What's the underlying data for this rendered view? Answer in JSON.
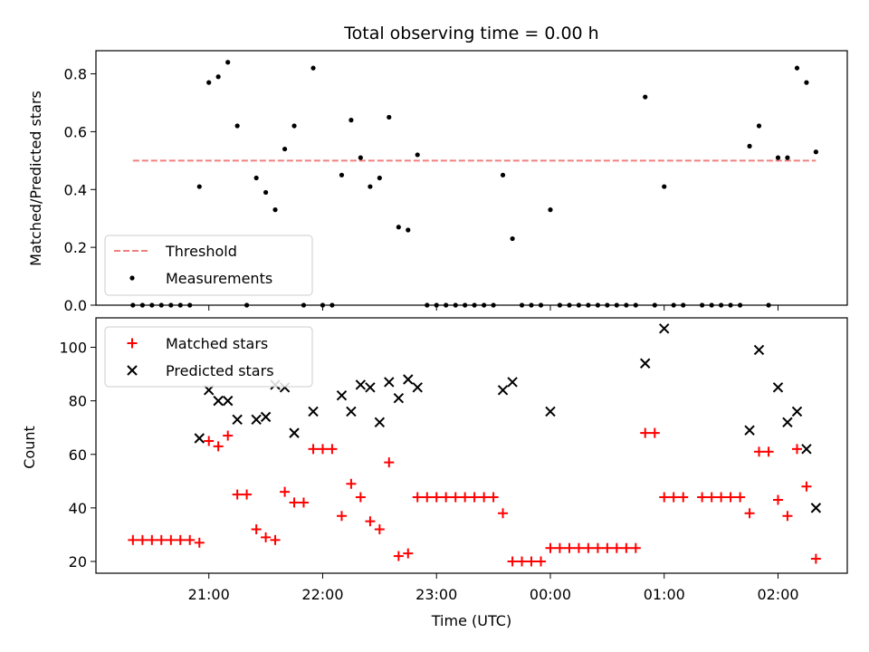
{
  "chart_data": {
    "title": "Total observing time = 0.00 h",
    "xlabel": "Time (UTC)",
    "x_tick_labels": [
      "21:00",
      "22:00",
      "23:00",
      "00:00",
      "01:00",
      "02:00"
    ],
    "x_tick_hours": [
      21,
      22,
      23,
      24,
      25,
      26
    ],
    "xlim_hours": [
      20.0083,
      26.6083
    ],
    "panels": [
      {
        "type": "scatter",
        "ylabel": "Matched/Predicted stars",
        "ylim": [
          0,
          0.88
        ],
        "yticks": [
          0,
          0.2,
          0.4,
          0.6,
          0.8
        ],
        "ytick_labels": [
          "0.0",
          "0.2",
          "0.4",
          "0.6",
          "0.8"
        ],
        "legend": {
          "placement": "lower-left",
          "entries": [
            "Threshold",
            "Measurements"
          ]
        },
        "threshold": {
          "name": "Threshold",
          "value": 0.5,
          "x_range_hours": [
            20.333,
            26.333
          ],
          "color": "#f08080"
        },
        "series": [
          {
            "name": "Measurements",
            "color": "#000000",
            "points": [
              [
                20.333,
                0
              ],
              [
                20.417,
                0
              ],
              [
                20.5,
                0
              ],
              [
                20.583,
                0
              ],
              [
                20.667,
                0
              ],
              [
                20.75,
                0
              ],
              [
                20.833,
                0
              ],
              [
                20.917,
                0.41
              ],
              [
                21.0,
                0.77
              ],
              [
                21.083,
                0.79
              ],
              [
                21.167,
                0.84
              ],
              [
                21.25,
                0.62
              ],
              [
                21.333,
                0
              ],
              [
                21.417,
                0.44
              ],
              [
                21.5,
                0.39
              ],
              [
                21.583,
                0.33
              ],
              [
                21.667,
                0.54
              ],
              [
                21.75,
                0.62
              ],
              [
                21.833,
                0
              ],
              [
                21.917,
                0.82
              ],
              [
                22.0,
                0
              ],
              [
                22.083,
                0
              ],
              [
                22.167,
                0.45
              ],
              [
                22.25,
                0.64
              ],
              [
                22.333,
                0.51
              ],
              [
                22.417,
                0.41
              ],
              [
                22.5,
                0.44
              ],
              [
                22.583,
                0.65
              ],
              [
                22.667,
                0.27
              ],
              [
                22.75,
                0.26
              ],
              [
                22.833,
                0.52
              ],
              [
                22.917,
                0
              ],
              [
                23.0,
                0
              ],
              [
                23.083,
                0
              ],
              [
                23.167,
                0
              ],
              [
                23.25,
                0
              ],
              [
                23.333,
                0
              ],
              [
                23.417,
                0
              ],
              [
                23.5,
                0
              ],
              [
                23.583,
                0.45
              ],
              [
                23.667,
                0.23
              ],
              [
                23.75,
                0
              ],
              [
                23.833,
                0
              ],
              [
                23.917,
                0
              ],
              [
                24.0,
                0.33
              ],
              [
                24.083,
                0
              ],
              [
                24.167,
                0
              ],
              [
                24.25,
                0
              ],
              [
                24.333,
                0
              ],
              [
                24.417,
                0
              ],
              [
                24.5,
                0
              ],
              [
                24.583,
                0
              ],
              [
                24.667,
                0
              ],
              [
                24.75,
                0
              ],
              [
                24.833,
                0.72
              ],
              [
                24.917,
                0
              ],
              [
                25.0,
                0.41
              ],
              [
                25.083,
                0
              ],
              [
                25.167,
                0
              ],
              [
                25.333,
                0
              ],
              [
                25.417,
                0
              ],
              [
                25.5,
                0
              ],
              [
                25.583,
                0
              ],
              [
                25.667,
                0
              ],
              [
                25.75,
                0.55
              ],
              [
                25.833,
                0.62
              ],
              [
                25.917,
                0
              ],
              [
                26.0,
                0.51
              ],
              [
                26.083,
                0.51
              ],
              [
                26.167,
                0.82
              ],
              [
                26.25,
                0.77
              ],
              [
                26.333,
                0.53
              ]
            ]
          }
        ]
      },
      {
        "type": "scatter",
        "ylabel": "Count",
        "ylim": [
          15.6,
          111
        ],
        "yticks": [
          20,
          40,
          60,
          80,
          100
        ],
        "ytick_labels": [
          "20",
          "40",
          "60",
          "80",
          "100"
        ],
        "legend": {
          "placement": "top-left",
          "entries": [
            "Matched stars",
            "Predicted stars"
          ]
        },
        "series": [
          {
            "name": "Matched stars",
            "marker": "plus",
            "color": "#ff0000",
            "points": [
              [
                20.333,
                28
              ],
              [
                20.417,
                28
              ],
              [
                20.5,
                28
              ],
              [
                20.583,
                28
              ],
              [
                20.667,
                28
              ],
              [
                20.75,
                28
              ],
              [
                20.833,
                28
              ],
              [
                20.917,
                27
              ],
              [
                21.0,
                65
              ],
              [
                21.083,
                63
              ],
              [
                21.167,
                67
              ],
              [
                21.25,
                45
              ],
              [
                21.333,
                45
              ],
              [
                21.417,
                32
              ],
              [
                21.5,
                29
              ],
              [
                21.583,
                28
              ],
              [
                21.667,
                46
              ],
              [
                21.75,
                42
              ],
              [
                21.833,
                42
              ],
              [
                21.917,
                62
              ],
              [
                22.0,
                62
              ],
              [
                22.083,
                62
              ],
              [
                22.167,
                37
              ],
              [
                22.25,
                49
              ],
              [
                22.333,
                44
              ],
              [
                22.417,
                35
              ],
              [
                22.5,
                32
              ],
              [
                22.583,
                57
              ],
              [
                22.667,
                22
              ],
              [
                22.75,
                23
              ],
              [
                22.833,
                44
              ],
              [
                22.917,
                44
              ],
              [
                23.0,
                44
              ],
              [
                23.083,
                44
              ],
              [
                23.167,
                44
              ],
              [
                23.25,
                44
              ],
              [
                23.333,
                44
              ],
              [
                23.417,
                44
              ],
              [
                23.5,
                44
              ],
              [
                23.583,
                38
              ],
              [
                23.667,
                20
              ],
              [
                23.75,
                20
              ],
              [
                23.833,
                20
              ],
              [
                23.917,
                20
              ],
              [
                24.0,
                25
              ],
              [
                24.083,
                25
              ],
              [
                24.167,
                25
              ],
              [
                24.25,
                25
              ],
              [
                24.333,
                25
              ],
              [
                24.417,
                25
              ],
              [
                24.5,
                25
              ],
              [
                24.583,
                25
              ],
              [
                24.667,
                25
              ],
              [
                24.75,
                25
              ],
              [
                24.833,
                68
              ],
              [
                24.917,
                68
              ],
              [
                25.0,
                44
              ],
              [
                25.083,
                44
              ],
              [
                25.167,
                44
              ],
              [
                25.333,
                44
              ],
              [
                25.417,
                44
              ],
              [
                25.5,
                44
              ],
              [
                25.583,
                44
              ],
              [
                25.667,
                44
              ],
              [
                25.75,
                38
              ],
              [
                25.833,
                61
              ],
              [
                25.917,
                61
              ],
              [
                26.0,
                43
              ],
              [
                26.083,
                37
              ],
              [
                26.167,
                62
              ],
              [
                26.25,
                48
              ],
              [
                26.333,
                21
              ]
            ]
          },
          {
            "name": "Predicted stars",
            "marker": "x",
            "color": "#000000",
            "points": [
              [
                20.917,
                66
              ],
              [
                21.0,
                84
              ],
              [
                21.083,
                80
              ],
              [
                21.167,
                80
              ],
              [
                21.25,
                73
              ],
              [
                21.417,
                73
              ],
              [
                21.5,
                74
              ],
              [
                21.583,
                86
              ],
              [
                21.667,
                85
              ],
              [
                21.75,
                68
              ],
              [
                21.917,
                76
              ],
              [
                22.167,
                82
              ],
              [
                22.25,
                76
              ],
              [
                22.333,
                86
              ],
              [
                22.417,
                85
              ],
              [
                22.5,
                72
              ],
              [
                22.583,
                87
              ],
              [
                22.667,
                81
              ],
              [
                22.75,
                88
              ],
              [
                22.833,
                85
              ],
              [
                23.583,
                84
              ],
              [
                23.667,
                87
              ],
              [
                24.0,
                76
              ],
              [
                24.833,
                94
              ],
              [
                25.0,
                107
              ],
              [
                25.75,
                69
              ],
              [
                25.833,
                99
              ],
              [
                26.0,
                85
              ],
              [
                26.083,
                72
              ],
              [
                26.167,
                76
              ],
              [
                26.25,
                62
              ],
              [
                26.333,
                40
              ]
            ]
          }
        ]
      }
    ]
  }
}
